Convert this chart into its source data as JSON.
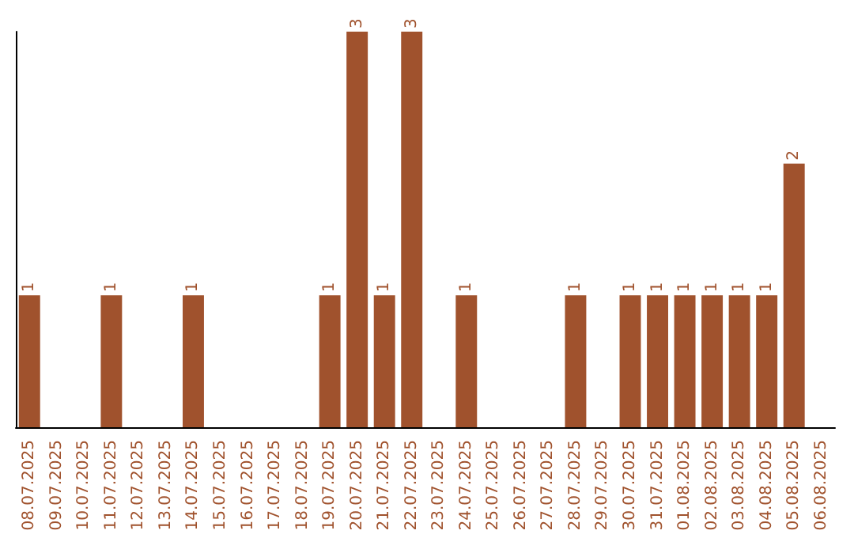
{
  "chart_data": {
    "type": "bar",
    "categories": [
      "08.07.2025",
      "09.07.2025",
      "10.07.2025",
      "11.07.2025",
      "12.07.2025",
      "13.07.2025",
      "14.07.2025",
      "15.07.2025",
      "16.07.2025",
      "17.07.2025",
      "18.07.2025",
      "19.07.2025",
      "20.07.2025",
      "21.07.2025",
      "22.07.2025",
      "23.07.2025",
      "24.07.2025",
      "25.07.2025",
      "26.07.2025",
      "27.07.2025",
      "28.07.2025",
      "29.07.2025",
      "30.07.2025",
      "31.07.2025",
      "01.08.2025",
      "02.08.2025",
      "03.08.2025",
      "04.08.2025",
      "05.08.2025",
      "06.08.2025"
    ],
    "values": [
      1,
      0,
      0,
      1,
      0,
      0,
      1,
      0,
      0,
      0,
      0,
      1,
      3,
      1,
      3,
      0,
      1,
      0,
      0,
      0,
      1,
      0,
      1,
      1,
      1,
      1,
      1,
      1,
      2,
      0
    ],
    "value_labels": [
      "1",
      null,
      null,
      "1",
      null,
      null,
      "1",
      null,
      null,
      null,
      null,
      "1",
      "3",
      "1",
      "3",
      null,
      "1",
      null,
      null,
      null,
      "1",
      null,
      "1",
      "1",
      "1",
      "1",
      "1",
      "1",
      "2",
      null
    ],
    "color": "#a0522d",
    "grid": false
  }
}
